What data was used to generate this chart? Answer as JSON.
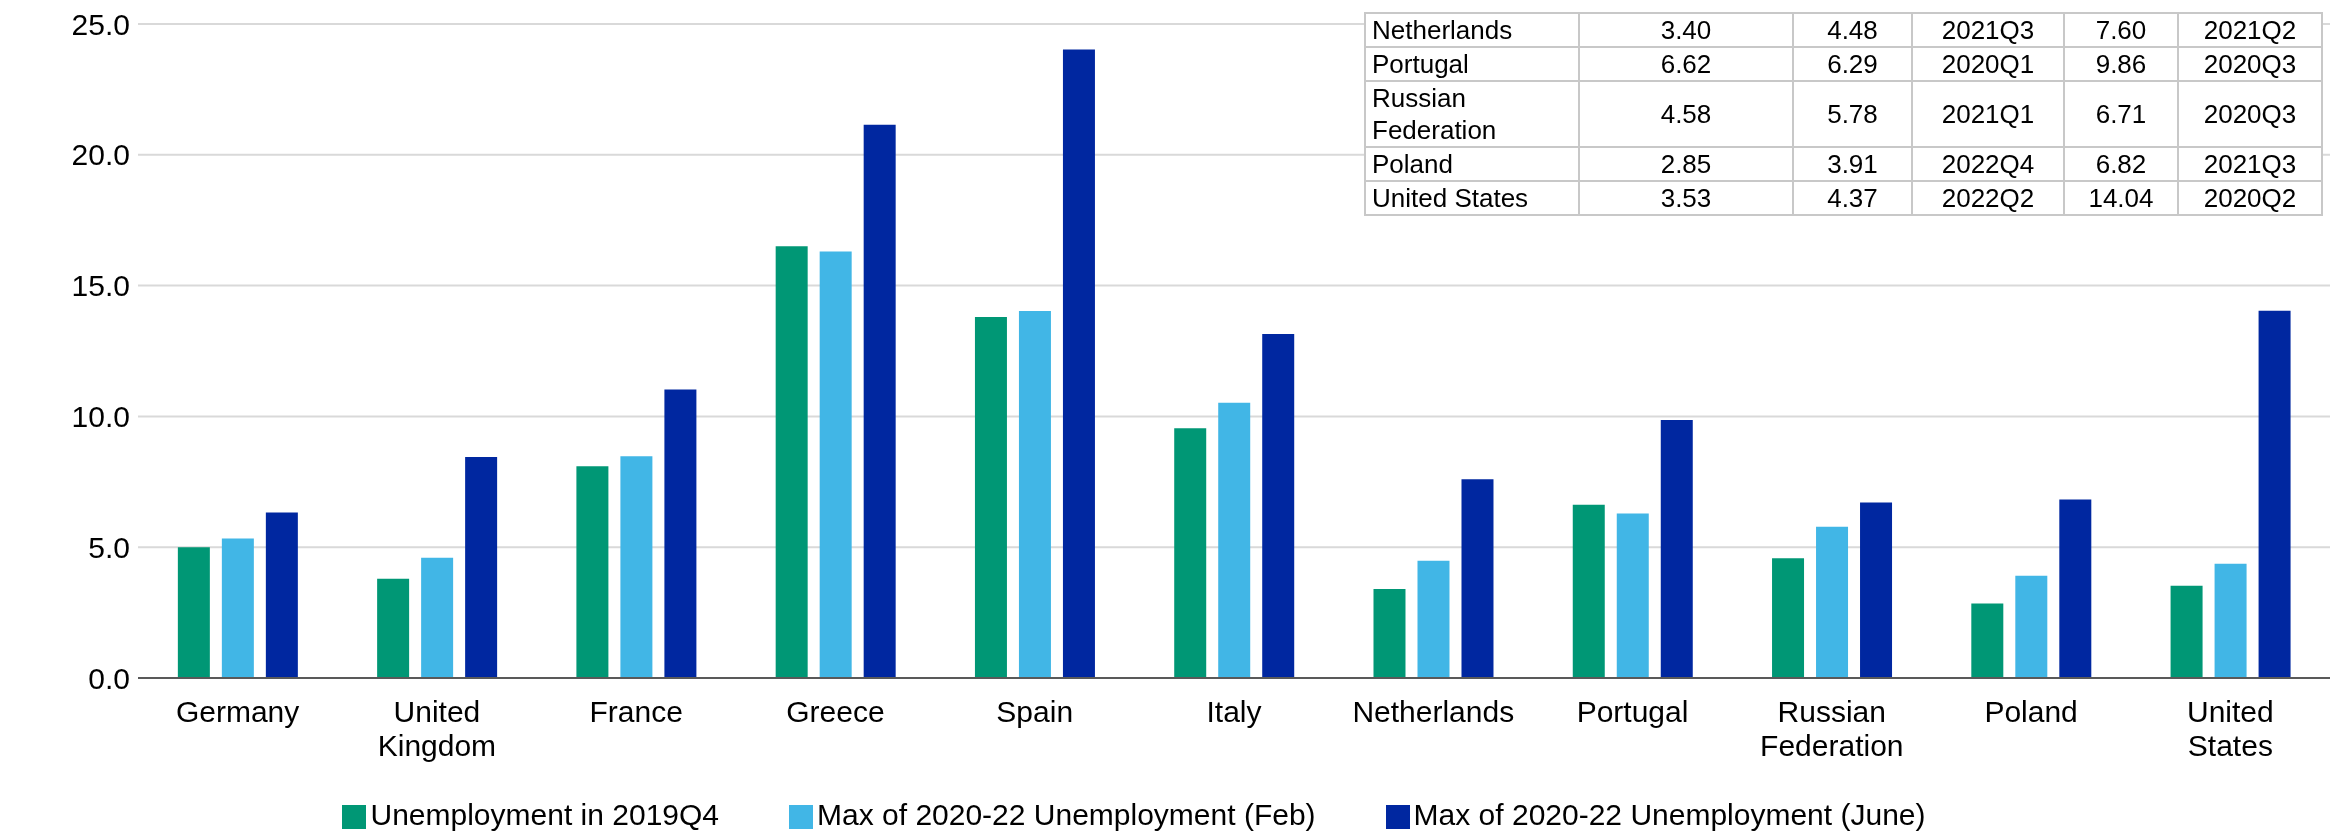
{
  "chart_data": {
    "type": "bar",
    "categories": [
      "Germany",
      "United Kingdom",
      "France",
      "Greece",
      "Spain",
      "Italy",
      "Netherlands",
      "Portugal",
      "Russian Federation",
      "Poland",
      "United States"
    ],
    "series": [
      {
        "name": "Unemployment in 2019Q4",
        "color": "#009775",
        "values": [
          5.0,
          3.79,
          8.09,
          16.5,
          13.8,
          9.55,
          3.4,
          6.62,
          4.58,
          2.85,
          3.53
        ]
      },
      {
        "name": "Max of 2020-22 Unemployment (Feb)",
        "color": "#41b6e6",
        "values": [
          5.33,
          4.6,
          8.48,
          16.3,
          14.03,
          10.52,
          4.48,
          6.29,
          5.78,
          3.91,
          4.37
        ]
      },
      {
        "name": "Max of 2020-22 Unemployment (June)",
        "color": "#0027a0",
        "values": [
          6.33,
          8.45,
          11.03,
          21.15,
          24.03,
          13.15,
          7.6,
          9.86,
          6.71,
          6.82,
          14.04
        ]
      }
    ],
    "annotations": [
      "Netherlands",
      "3.40",
      "4.48",
      "2021Q3",
      "7.60",
      "2021Q2",
      "Portugal",
      "6.62",
      "6.29",
      "2020Q1",
      "9.86",
      "2020Q3",
      "Russian Federation",
      "4.58",
      "5.78",
      "2021Q1",
      "6.71",
      "2020Q3",
      "Poland",
      "2.85",
      "3.91",
      "2022Q4",
      "6.82",
      "2021Q3",
      "United States",
      "3.53",
      "4.37",
      "2022Q2",
      "14.04",
      "2020Q2"
    ],
    "ylim": [
      0,
      25
    ],
    "yticks": [
      {
        "value": 0,
        "label": "0.0"
      },
      {
        "value": 5,
        "label": "5.0"
      },
      {
        "value": 10,
        "label": "10.0"
      },
      {
        "value": 15,
        "label": "15.0"
      },
      {
        "value": 20,
        "label": "20.0"
      },
      {
        "value": 25,
        "label": "25.0"
      }
    ],
    "grid": "y",
    "legend": "bottom"
  }
}
